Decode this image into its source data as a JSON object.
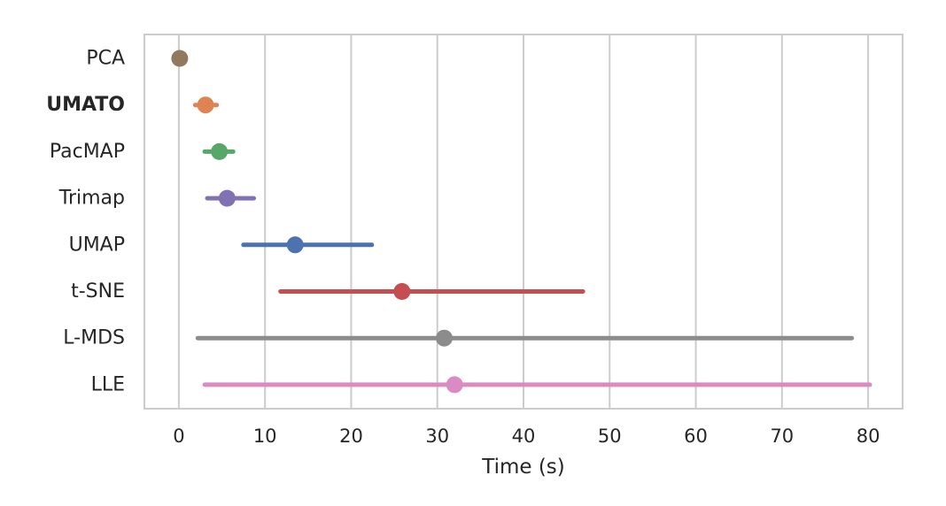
{
  "chart_data": {
    "type": "scatter",
    "subtype": "point-with-range",
    "title": "",
    "xlabel": "Time (s)",
    "ylabel": "",
    "xlim": [
      -4,
      84
    ],
    "xticks": [
      0,
      10,
      20,
      30,
      40,
      50,
      60,
      70,
      80
    ],
    "grid": "vertical",
    "legend": "none",
    "categories": [
      "PCA",
      "UMATO",
      "PacMAP",
      "Trimap",
      "UMAP",
      "t-SNE",
      "L-MDS",
      "LLE"
    ],
    "highlighted_category": "UMATO",
    "series": [
      {
        "method": "PCA",
        "mean": 0.1,
        "low": 0.0,
        "high": 0.2,
        "color": "#937860"
      },
      {
        "method": "UMATO",
        "mean": 3.1,
        "low": 1.9,
        "high": 4.4,
        "color": "#dd8452"
      },
      {
        "method": "PacMAP",
        "mean": 4.7,
        "low": 3.0,
        "high": 6.3,
        "color": "#55a868"
      },
      {
        "method": "Trimap",
        "mean": 5.6,
        "low": 3.3,
        "high": 8.7,
        "color": "#8172b3"
      },
      {
        "method": "UMAP",
        "mean": 13.5,
        "low": 7.5,
        "high": 22.4,
        "color": "#4c72b0"
      },
      {
        "method": "t-SNE",
        "mean": 25.9,
        "low": 11.8,
        "high": 46.9,
        "color": "#c44e52"
      },
      {
        "method": "L-MDS",
        "mean": 30.8,
        "low": 2.2,
        "high": 78.1,
        "color": "#8c8c8c"
      },
      {
        "method": "LLE",
        "mean": 32.0,
        "low": 3.0,
        "high": 80.2,
        "color": "#da8bc3"
      }
    ]
  }
}
